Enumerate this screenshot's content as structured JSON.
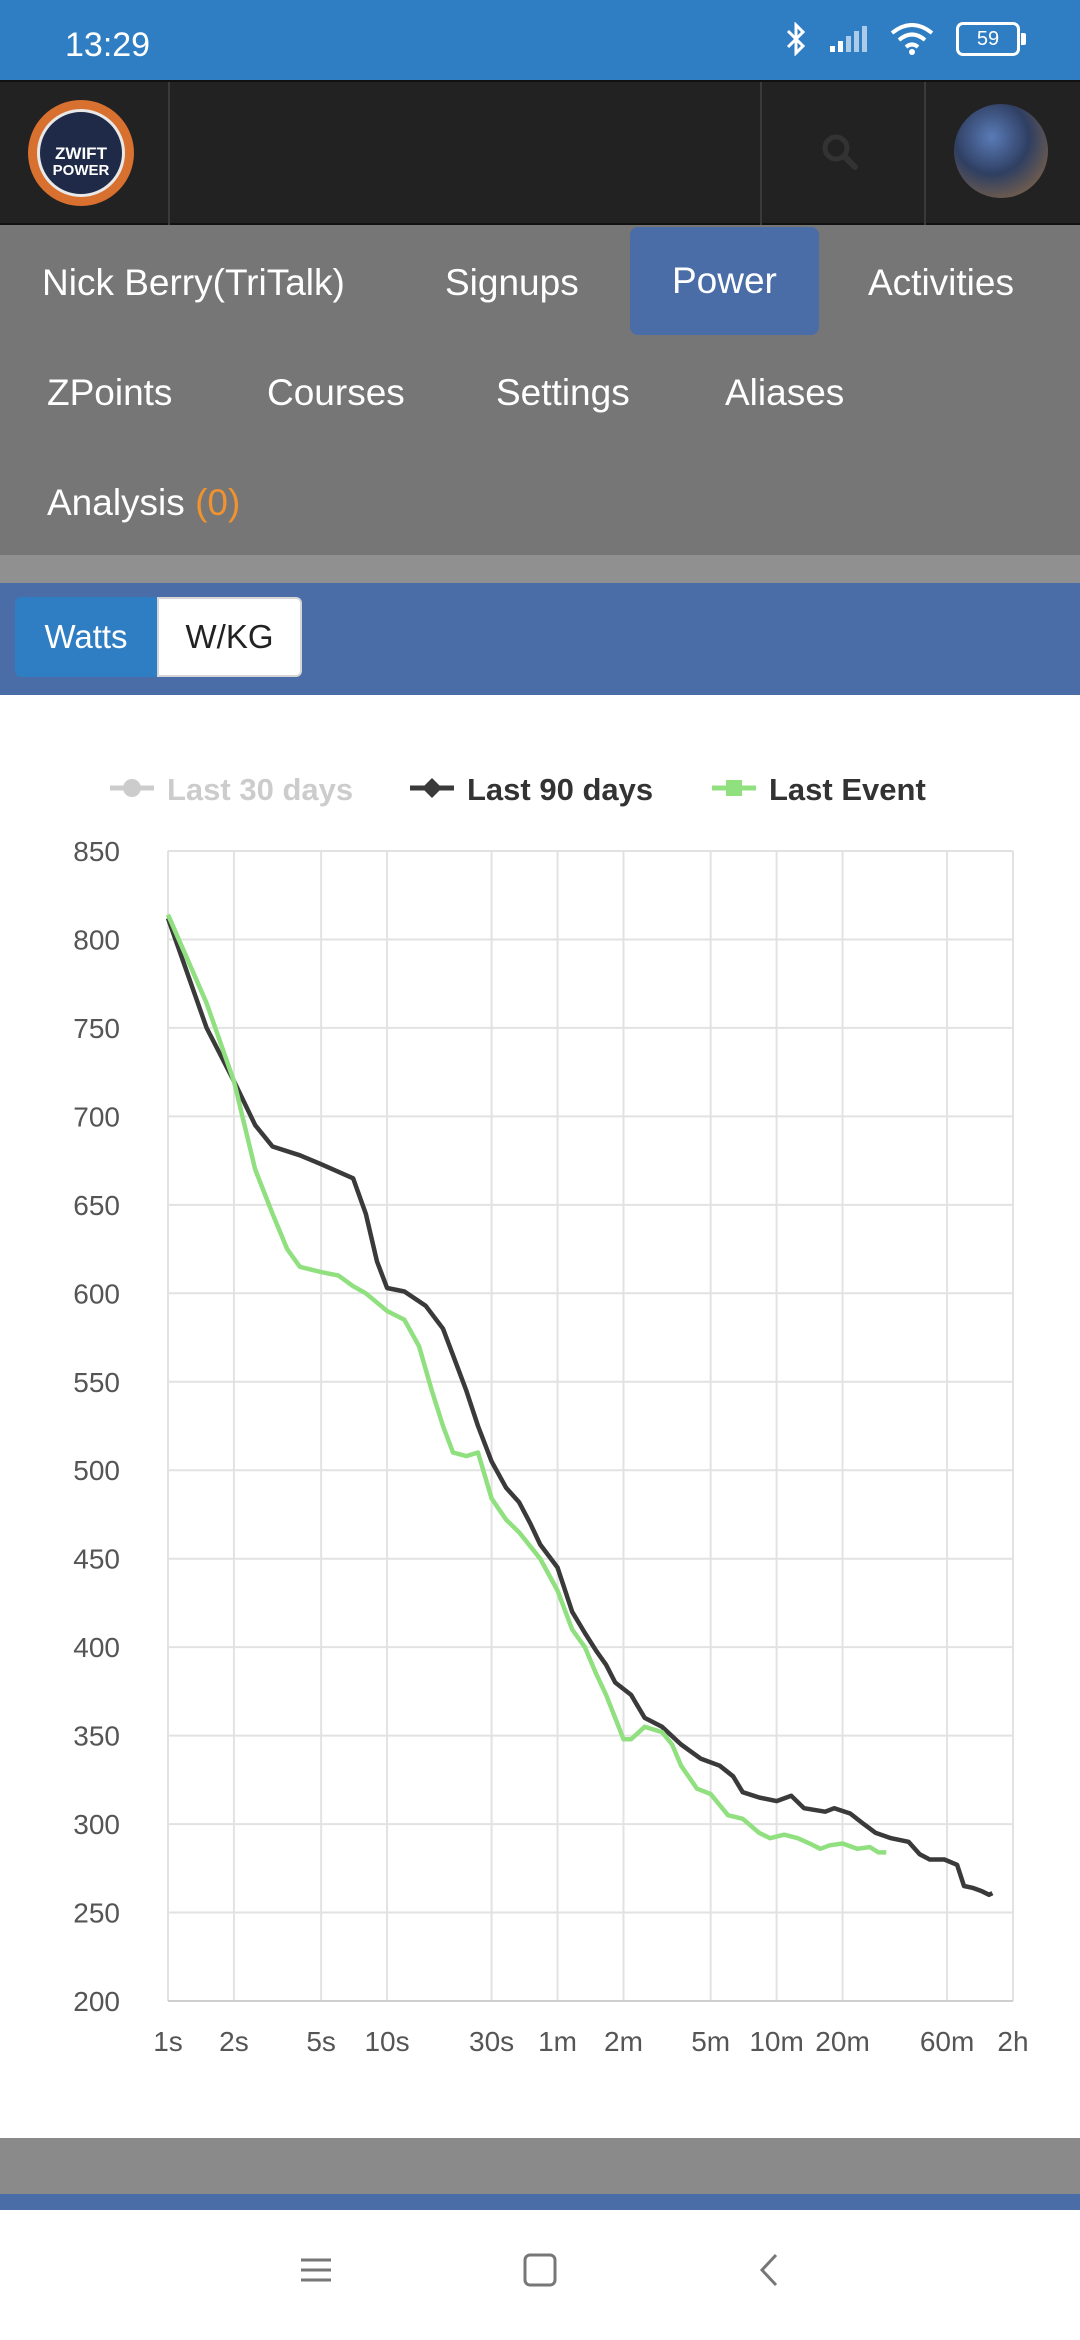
{
  "status_bar": {
    "time": "13:29",
    "battery": "59"
  },
  "header": {
    "logo_text_line1": "ZWIFT",
    "logo_text_line2": "POWER",
    "search_icon": "search-icon",
    "avatar": "user-avatar"
  },
  "nav": {
    "items": [
      {
        "label": "Nick Berry(TriTalk)"
      },
      {
        "label": "Signups"
      },
      {
        "label": "Power",
        "active": true
      },
      {
        "label": "Activities"
      },
      {
        "label": "ZPoints"
      },
      {
        "label": "Courses"
      },
      {
        "label": "Settings"
      },
      {
        "label": "Aliases"
      },
      {
        "label": "Analysis",
        "count": "(0)"
      }
    ]
  },
  "units": {
    "watts": "Watts",
    "wkg": "W/KG",
    "selected": "Watts"
  },
  "colors": {
    "blue": "#4a6da8",
    "active_blue": "#2f7ec3",
    "series_90": "#3a3a3a",
    "series_event": "#90e080",
    "series_30_disabled": "#cccccc",
    "accent": "#f0922f"
  },
  "chart_data": {
    "type": "line",
    "legend": [
      {
        "name": "Last 30 days",
        "hidden": true
      },
      {
        "name": "Last 90 days",
        "hidden": false
      },
      {
        "name": "Last Event",
        "hidden": false
      }
    ],
    "legend_position": "top",
    "grid": true,
    "x_scale": "log",
    "x_ticks": [
      {
        "label": "1s",
        "seconds": 1
      },
      {
        "label": "2s",
        "seconds": 2
      },
      {
        "label": "5s",
        "seconds": 5
      },
      {
        "label": "10s",
        "seconds": 10
      },
      {
        "label": "30s",
        "seconds": 30
      },
      {
        "label": "1m",
        "seconds": 60
      },
      {
        "label": "2m",
        "seconds": 120
      },
      {
        "label": "5m",
        "seconds": 300
      },
      {
        "label": "10m",
        "seconds": 600
      },
      {
        "label": "20m",
        "seconds": 1200
      },
      {
        "label": "60m",
        "seconds": 3600
      },
      {
        "label": "2h",
        "seconds": 7200
      }
    ],
    "y_ticks": [
      850,
      800,
      750,
      700,
      650,
      600,
      550,
      500,
      450,
      400,
      350,
      300,
      250,
      200
    ],
    "ylim": [
      200,
      850
    ],
    "series": [
      {
        "name": "Last 90 days",
        "points": [
          [
            1,
            812
          ],
          [
            1.5,
            750
          ],
          [
            2,
            720
          ],
          [
            2.5,
            695
          ],
          [
            3,
            683
          ],
          [
            4,
            678
          ],
          [
            5,
            673
          ],
          [
            7,
            665
          ],
          [
            8,
            645
          ],
          [
            9,
            618
          ],
          [
            10,
            603
          ],
          [
            12,
            601
          ],
          [
            15,
            593
          ],
          [
            18,
            580
          ],
          [
            20,
            565
          ],
          [
            23,
            545
          ],
          [
            26,
            525
          ],
          [
            30,
            505
          ],
          [
            35,
            490
          ],
          [
            40,
            482
          ],
          [
            45,
            470
          ],
          [
            50,
            458
          ],
          [
            60,
            445
          ],
          [
            70,
            420
          ],
          [
            80,
            408
          ],
          [
            90,
            398
          ],
          [
            100,
            390
          ],
          [
            110,
            380
          ],
          [
            130,
            373
          ],
          [
            150,
            360
          ],
          [
            180,
            355
          ],
          [
            220,
            345
          ],
          [
            270,
            337
          ],
          [
            330,
            333
          ],
          [
            380,
            327
          ],
          [
            420,
            318
          ],
          [
            500,
            315
          ],
          [
            600,
            313
          ],
          [
            700,
            316
          ],
          [
            800,
            309
          ],
          [
            1000,
            307
          ],
          [
            1100,
            309
          ],
          [
            1300,
            306
          ],
          [
            1500,
            300
          ],
          [
            1700,
            295
          ],
          [
            2000,
            292
          ],
          [
            2400,
            290
          ],
          [
            2700,
            283
          ],
          [
            3000,
            280
          ],
          [
            3500,
            280
          ],
          [
            4000,
            277
          ],
          [
            4300,
            265
          ],
          [
            4700,
            264
          ],
          [
            5200,
            262
          ],
          [
            5600,
            260
          ],
          [
            5800,
            261
          ]
        ]
      },
      {
        "name": "Last Event",
        "points": [
          [
            1,
            814
          ],
          [
            1.5,
            764
          ],
          [
            2,
            720
          ],
          [
            2.5,
            670
          ],
          [
            3,
            645
          ],
          [
            3.5,
            625
          ],
          [
            4,
            615
          ],
          [
            5,
            612
          ],
          [
            6,
            610
          ],
          [
            7,
            604
          ],
          [
            8,
            600
          ],
          [
            10,
            590
          ],
          [
            12,
            585
          ],
          [
            14,
            570
          ],
          [
            16,
            545
          ],
          [
            18,
            525
          ],
          [
            20,
            510
          ],
          [
            23,
            508
          ],
          [
            26,
            510
          ],
          [
            30,
            484
          ],
          [
            35,
            472
          ],
          [
            40,
            465
          ],
          [
            50,
            450
          ],
          [
            60,
            432
          ],
          [
            70,
            410
          ],
          [
            80,
            400
          ],
          [
            90,
            385
          ],
          [
            100,
            373
          ],
          [
            110,
            360
          ],
          [
            120,
            348
          ],
          [
            130,
            348
          ],
          [
            150,
            355
          ],
          [
            180,
            352
          ],
          [
            200,
            345
          ],
          [
            220,
            333
          ],
          [
            260,
            320
          ],
          [
            300,
            317
          ],
          [
            360,
            305
          ],
          [
            420,
            303
          ],
          [
            500,
            295
          ],
          [
            560,
            292
          ],
          [
            650,
            294
          ],
          [
            750,
            292
          ],
          [
            850,
            289
          ],
          [
            950,
            286
          ],
          [
            1050,
            288
          ],
          [
            1200,
            289
          ],
          [
            1400,
            286
          ],
          [
            1600,
            287
          ],
          [
            1750,
            284
          ],
          [
            1900,
            284
          ]
        ]
      }
    ]
  }
}
